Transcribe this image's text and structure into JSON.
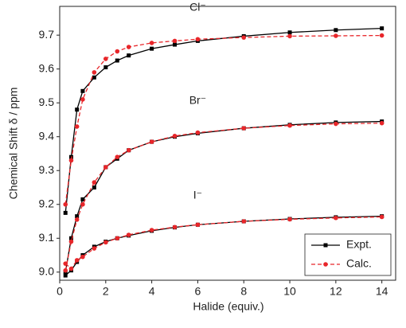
{
  "chart_data": {
    "type": "line",
    "xlabel": "Halide (equiv.)",
    "ylabel": "Chemical Shift δ / ppm",
    "x": [
      0.25,
      0.5,
      0.75,
      1,
      1.5,
      2,
      2.5,
      3,
      4,
      5,
      6,
      8,
      10,
      12,
      14
    ],
    "groups": [
      "Cl⁻",
      "Br⁻",
      "I⁻"
    ],
    "series": [
      {
        "name": "Expt.",
        "color": "#000000",
        "marker": "square",
        "dashed": false,
        "values": [
          [
            9.175,
            9.34,
            9.48,
            9.535,
            9.575,
            9.605,
            9.625,
            9.64,
            9.66,
            9.672,
            9.683,
            9.697,
            9.708,
            9.715,
            9.72
          ],
          [
            9.0,
            9.1,
            9.165,
            9.215,
            9.25,
            9.31,
            9.335,
            9.36,
            9.385,
            9.4,
            9.41,
            9.425,
            9.435,
            9.442,
            9.445
          ],
          [
            8.99,
            9.005,
            9.03,
            9.05,
            9.075,
            9.09,
            9.1,
            9.108,
            9.122,
            9.132,
            9.14,
            9.15,
            9.157,
            9.162,
            9.165
          ]
        ]
      },
      {
        "name": "Calc.",
        "color": "#e8262a",
        "marker": "circle",
        "dashed": true,
        "values": [
          [
            9.2,
            9.33,
            9.43,
            9.51,
            9.59,
            9.63,
            9.652,
            9.665,
            9.677,
            9.683,
            9.688,
            9.693,
            9.697,
            9.698,
            9.699
          ],
          [
            9.005,
            9.09,
            9.155,
            9.2,
            9.265,
            9.31,
            9.34,
            9.36,
            9.385,
            9.402,
            9.412,
            9.425,
            9.433,
            9.438,
            9.44
          ],
          [
            9.025,
            9.01,
            9.035,
            9.045,
            9.07,
            9.088,
            9.1,
            9.11,
            9.124,
            9.133,
            9.14,
            9.15,
            9.156,
            9.16,
            9.163
          ]
        ]
      }
    ],
    "xlim": [
      0,
      14.6
    ],
    "xticks": [
      0,
      2,
      4,
      6,
      8,
      10,
      12,
      14
    ],
    "ylim": [
      8.976,
      9.785
    ],
    "yticks": [
      {
        "value": 9,
        "label": "9.0"
      },
      9.1,
      9.2,
      9.3,
      9.4,
      9.5,
      9.6,
      9.7
    ],
    "legend": "lower right"
  }
}
